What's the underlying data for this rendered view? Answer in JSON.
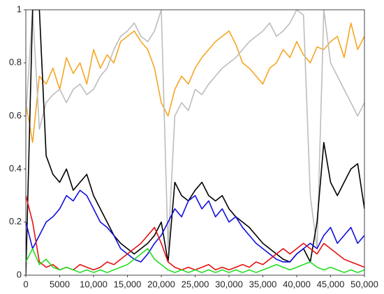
{
  "chart_data": {
    "type": "line",
    "x": [
      0,
      1000,
      2000,
      3000,
      4000,
      5000,
      6000,
      7000,
      8000,
      9000,
      10000,
      11000,
      12000,
      13000,
      14000,
      15000,
      16000,
      17000,
      18000,
      19000,
      20000,
      21000,
      22000,
      23000,
      24000,
      25000,
      26000,
      27000,
      28000,
      29000,
      30000,
      31000,
      32000,
      33000,
      34000,
      35000,
      36000,
      37000,
      38000,
      39000,
      40000,
      41000,
      42000,
      43000,
      44000,
      45000,
      46000,
      47000,
      48000,
      49000,
      50000
    ],
    "series": [
      {
        "color": "#f5a623",
        "values": [
          0.65,
          0.5,
          0.75,
          0.72,
          0.78,
          0.7,
          0.82,
          0.76,
          0.8,
          0.72,
          0.85,
          0.78,
          0.83,
          0.8,
          0.88,
          0.9,
          0.92,
          0.88,
          0.85,
          0.78,
          0.65,
          0.6,
          0.7,
          0.75,
          0.72,
          0.78,
          0.82,
          0.85,
          0.88,
          0.9,
          0.92,
          0.87,
          0.8,
          0.78,
          0.75,
          0.72,
          0.78,
          0.8,
          0.85,
          0.82,
          0.88,
          0.83,
          0.8,
          0.86,
          0.85,
          0.88,
          0.9,
          0.82,
          0.95,
          0.85,
          0.9
        ]
      },
      {
        "color": "#bdbdbd",
        "values": [
          0.6,
          1,
          0.55,
          0.65,
          0.68,
          0.7,
          0.65,
          0.7,
          0.72,
          0.68,
          0.7,
          0.75,
          0.78,
          0.85,
          0.9,
          0.92,
          0.95,
          0.9,
          0.88,
          0.92,
          1,
          0.1,
          0.6,
          0.65,
          0.62,
          0.7,
          0.68,
          0.72,
          0.75,
          0.78,
          0.8,
          0.82,
          0.85,
          0.88,
          0.9,
          0.92,
          0.95,
          0.9,
          0.92,
          0.95,
          1,
          0.98,
          0.3,
          0.1,
          1,
          0.8,
          0.75,
          0.7,
          0.65,
          0.6,
          0.65
        ]
      },
      {
        "color": "#000000",
        "values": [
          0,
          1,
          1,
          0.45,
          0.38,
          0.35,
          0.4,
          0.32,
          0.35,
          0.38,
          0.3,
          0.25,
          0.2,
          0.15,
          0.12,
          0.1,
          0.08,
          0.1,
          0.12,
          0.15,
          0.2,
          0.05,
          0.35,
          0.3,
          0.28,
          0.32,
          0.35,
          0.3,
          0.28,
          0.3,
          0.25,
          0.22,
          0.2,
          0.18,
          0.15,
          0.12,
          0.1,
          0.08,
          0.06,
          0.05,
          0.08,
          0.1,
          0.05,
          0.2,
          0.5,
          0.35,
          0.3,
          0.35,
          0.4,
          0.42,
          0.25
        ]
      },
      {
        "color": "#1010e0",
        "values": [
          0.2,
          0.1,
          0.15,
          0.2,
          0.22,
          0.25,
          0.3,
          0.28,
          0.32,
          0.3,
          0.25,
          0.2,
          0.18,
          0.15,
          0.1,
          0.08,
          0.06,
          0.05,
          0.08,
          0.12,
          0.15,
          0.2,
          0.25,
          0.22,
          0.28,
          0.3,
          0.25,
          0.28,
          0.22,
          0.25,
          0.2,
          0.22,
          0.18,
          0.15,
          0.12,
          0.1,
          0.08,
          0.06,
          0.05,
          0.05,
          0.08,
          0.1,
          0.12,
          0.1,
          0.15,
          0.18,
          0.12,
          0.15,
          0.18,
          0.12,
          0.15
        ]
      },
      {
        "color": "#e81010",
        "values": [
          0.3,
          0.2,
          0.05,
          0.03,
          0.04,
          0.02,
          0.03,
          0.02,
          0.04,
          0.03,
          0.02,
          0.03,
          0.05,
          0.04,
          0.06,
          0.08,
          0.1,
          0.12,
          0.15,
          0.18,
          0.12,
          0.05,
          0.03,
          0.02,
          0.03,
          0.02,
          0.03,
          0.04,
          0.02,
          0.03,
          0.02,
          0.03,
          0.04,
          0.03,
          0.05,
          0.04,
          0.06,
          0.08,
          0.1,
          0.08,
          0.1,
          0.12,
          0.1,
          0.08,
          0.12,
          0.1,
          0.08,
          0.06,
          0.05,
          0.04,
          0.03
        ]
      },
      {
        "color": "#22dd22",
        "values": [
          0.05,
          0.1,
          0.04,
          0.06,
          0.03,
          0.02,
          0.03,
          0.02,
          0.01,
          0.02,
          0.01,
          0.02,
          0.01,
          0.02,
          0.03,
          0.04,
          0.06,
          0.08,
          0.1,
          0.06,
          0.04,
          0.02,
          0.01,
          0.02,
          0.01,
          0.02,
          0.01,
          0.02,
          0.01,
          0.02,
          0.01,
          0.02,
          0.01,
          0.02,
          0.01,
          0.02,
          0.03,
          0.04,
          0.03,
          0.02,
          0.03,
          0.04,
          0.05,
          0.03,
          0.02,
          0.03,
          0.02,
          0.01,
          0.02,
          0.01,
          0.02
        ]
      }
    ],
    "xlim": [
      0,
      50000
    ],
    "ylim": [
      0,
      1
    ],
    "xticks": [
      0,
      5000,
      {
        "value": 10000,
        "label": "10,000"
      },
      {
        "value": 15000,
        "label": "15,000"
      },
      {
        "value": 20000,
        "label": "20,000"
      },
      {
        "value": 25000,
        "label": "25,000"
      },
      {
        "value": 30000,
        "label": "30,000"
      },
      {
        "value": 35000,
        "label": "35,000"
      },
      {
        "value": 40000,
        "label": "40,000"
      },
      {
        "value": 45000,
        "label": "45,000"
      },
      {
        "value": 50000,
        "label": "50,000"
      }
    ],
    "yticks": [
      0,
      0.2,
      0.4,
      0.6,
      0.8,
      1
    ],
    "grid": false
  }
}
